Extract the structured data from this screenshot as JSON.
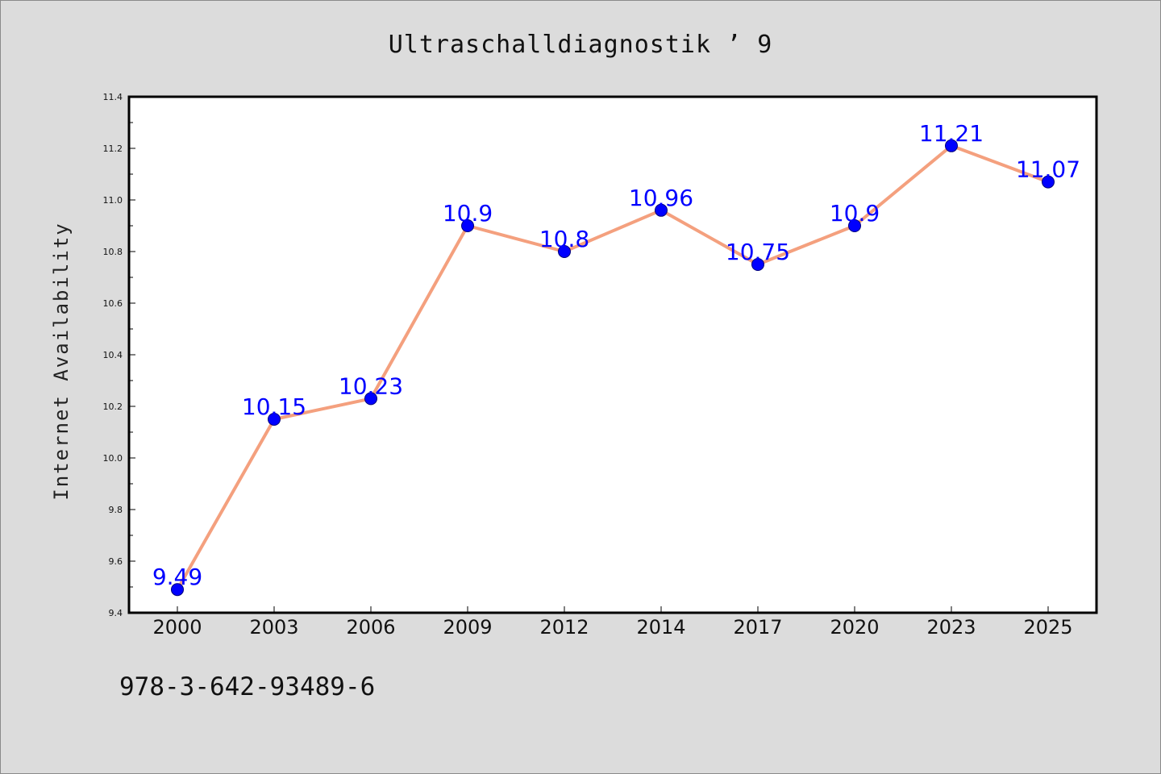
{
  "page": {
    "title": "Ultraschalldiagnostik ’ 9",
    "footer_text": "978-3-642-93489-6"
  },
  "chart_data": {
    "type": "line",
    "title": "Ultraschalldiagnostik ’ 9",
    "xlabel": "",
    "ylabel": "Internet Availability",
    "categories": [
      "2000",
      "2003",
      "2006",
      "2009",
      "2012",
      "2014",
      "2017",
      "2020",
      "2023",
      "2025"
    ],
    "series": [
      {
        "values": [
          9.49,
          10.15,
          10.23,
          10.9,
          10.8,
          10.96,
          10.75,
          10.9,
          11.21,
          11.07
        ]
      }
    ],
    "data_labels": [
      "9.49",
      "10.15",
      "10.23",
      "10.9",
      "10.8",
      "10.96",
      "10.75",
      "10.9",
      "11.21",
      "11.07"
    ],
    "ylim": [
      9.4,
      11.4
    ],
    "yticks": [
      "9.4",
      "9.6",
      "9.8",
      "10.0",
      "10.2",
      "10.4",
      "10.6",
      "10.8",
      "11.0",
      "11.2",
      "11.4"
    ],
    "grid": false,
    "legend": "none",
    "colors": {
      "line": "#f4a07e",
      "marker_fill": "#0000ff",
      "marker_edge": "#00007a",
      "data_label": "#0000ff",
      "plot_background": "#ffffff",
      "figure_background": "#dcdcdc"
    }
  }
}
